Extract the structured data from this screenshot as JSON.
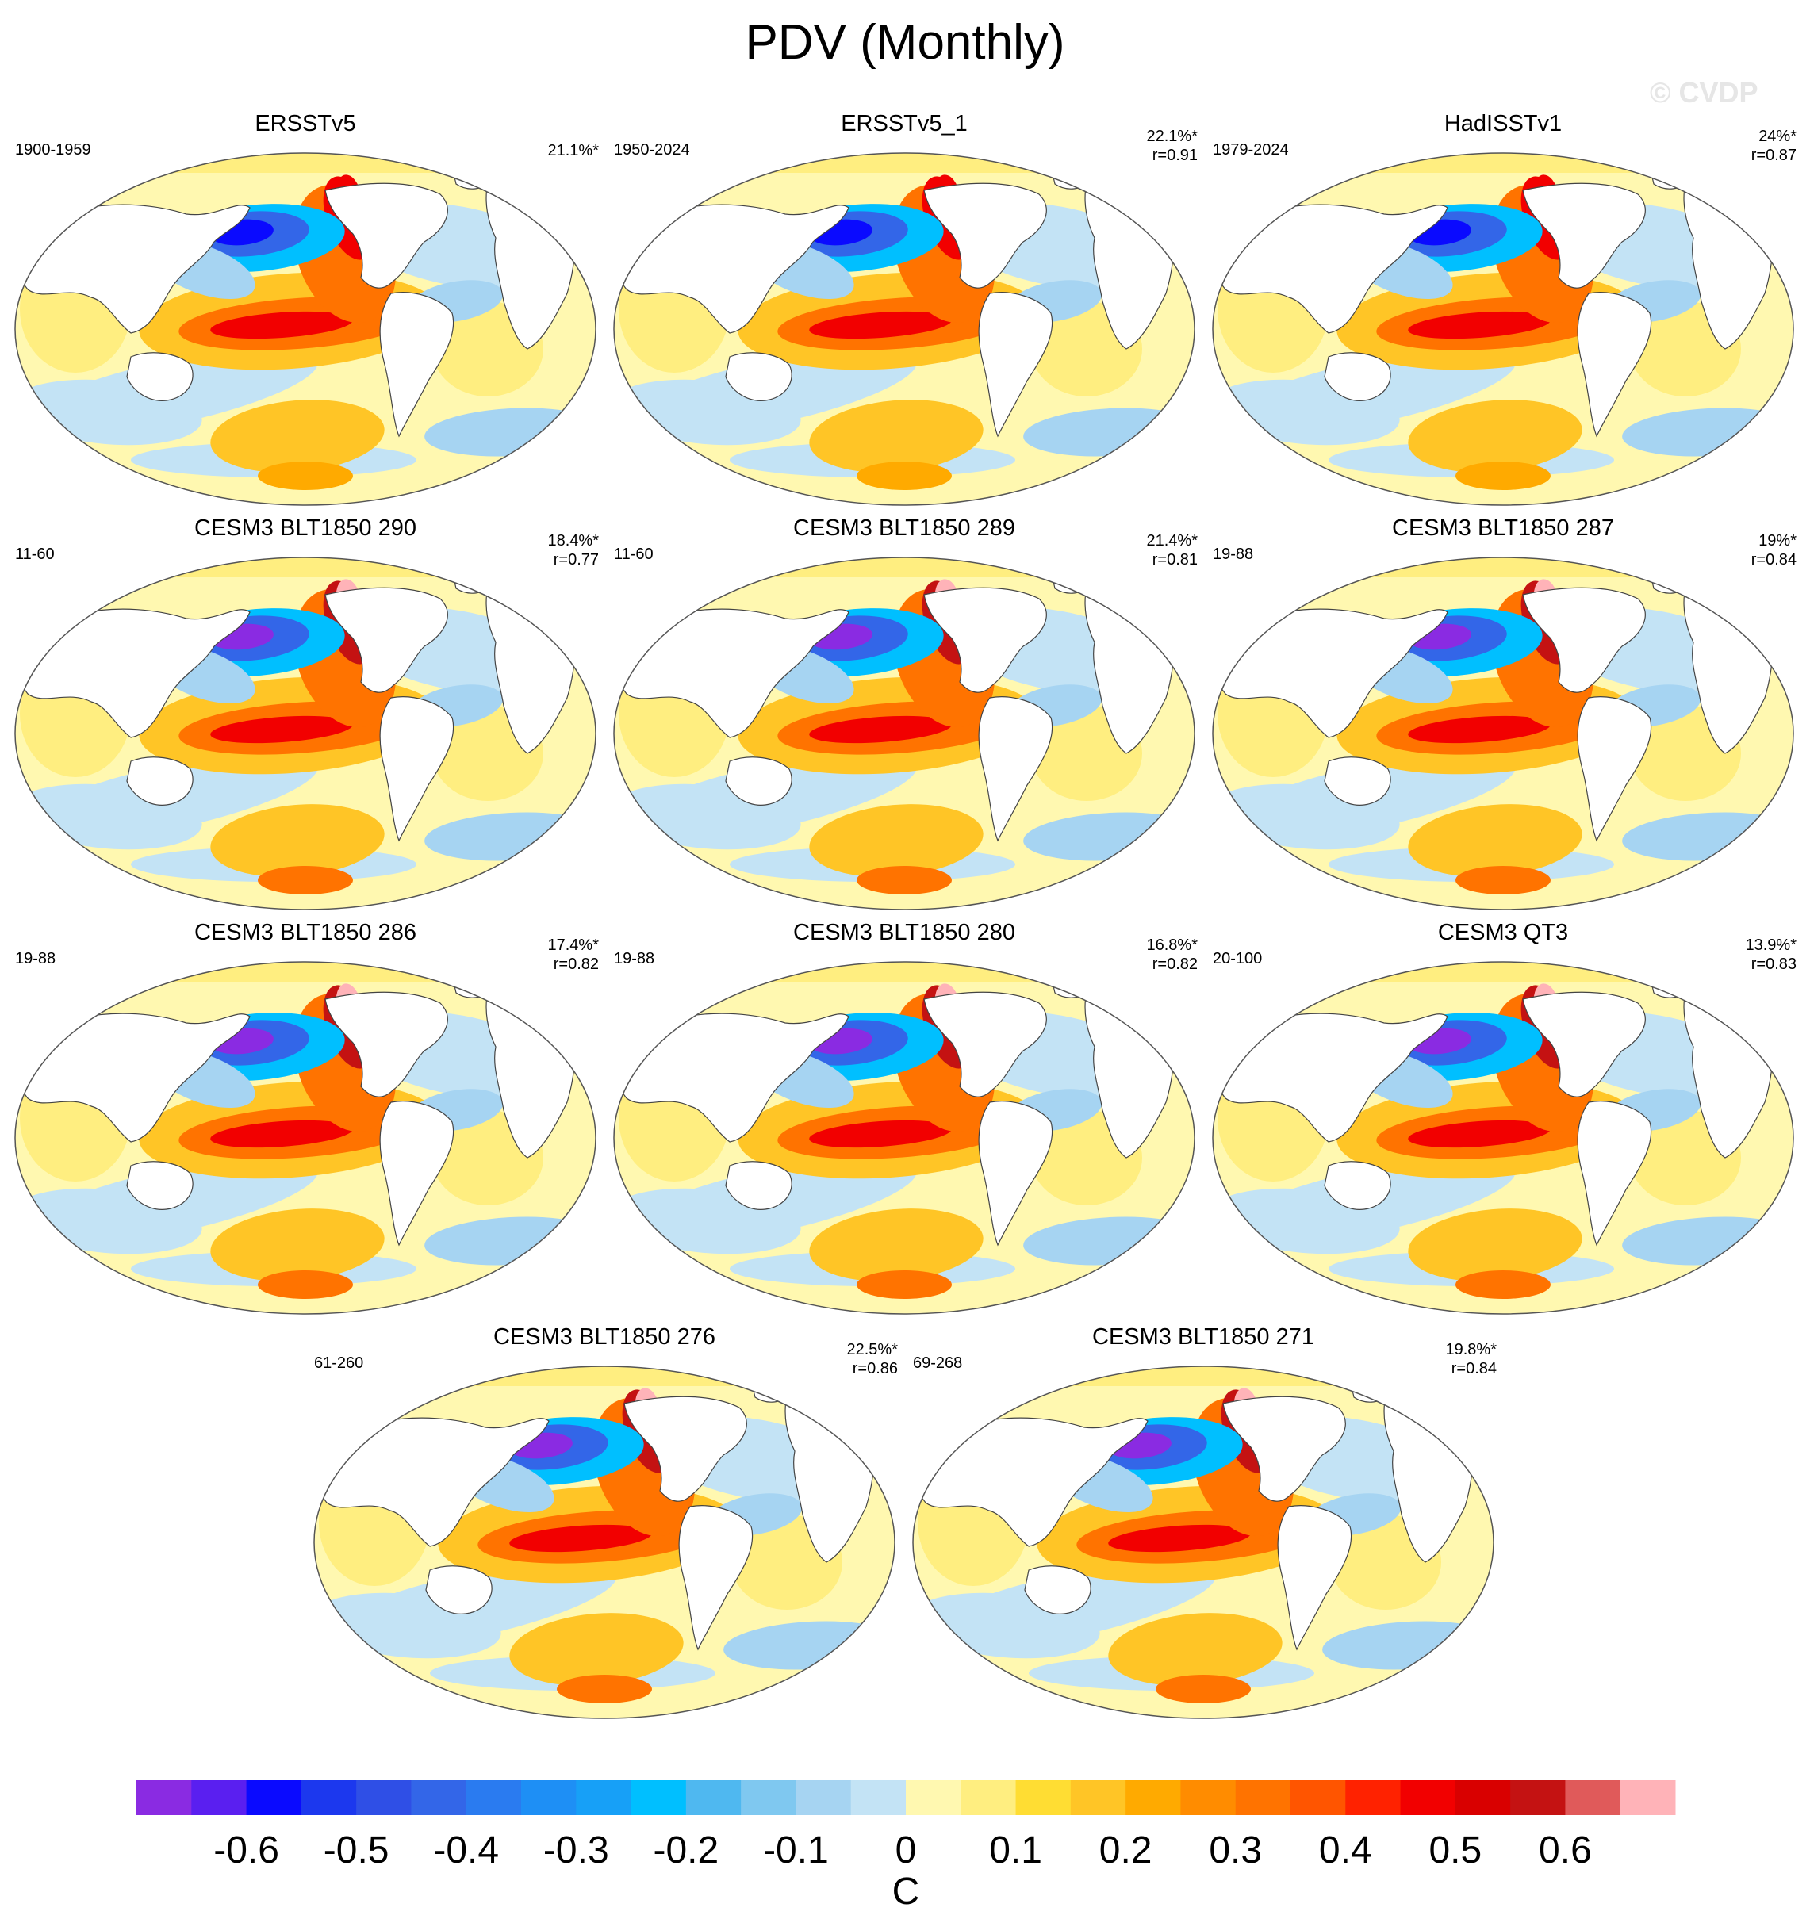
{
  "title": "PDV (Monthly)",
  "watermark": "© CVDP",
  "chart_data": {
    "type": "heatmap",
    "description_units": "C",
    "colorbar": {
      "label": "C",
      "tick_labels": [
        "-0.6",
        "-0.5",
        "-0.4",
        "-0.3",
        "-0.2",
        "-0.1",
        "0",
        "0.1",
        "0.2",
        "0.3",
        "0.4",
        "0.5",
        "0.6"
      ],
      "levels": [
        -0.65,
        -0.6,
        -0.55,
        -0.5,
        -0.45,
        -0.4,
        -0.35,
        -0.3,
        -0.25,
        -0.2,
        -0.15,
        -0.1,
        -0.05,
        0,
        0.05,
        0.1,
        0.15,
        0.2,
        0.25,
        0.3,
        0.35,
        0.4,
        0.45,
        0.5,
        0.55,
        0.6,
        0.65
      ],
      "colors": [
        "#8a2be2",
        "#5a1ff0",
        "#0a0aff",
        "#1c38ee",
        "#2f4fe6",
        "#3366e8",
        "#2a7bf0",
        "#1e8ff5",
        "#17a0f7",
        "#00bfff",
        "#4fb8f0",
        "#7fc8f0",
        "#a6d4f2",
        "#c3e3f5",
        "#fff8b0",
        "#ffee80",
        "#ffdd33",
        "#ffc526",
        "#ffaa00",
        "#ff8c00",
        "#ff7300",
        "#ff5500",
        "#ff2200",
        "#f20000",
        "#d90000",
        "#c41212",
        "#e05a5a",
        "#ffb3b8"
      ]
    },
    "panels": [
      {
        "title": "ERSSTv5",
        "period": "1900-1959",
        "variance": "21.1%*",
        "r": ""
      },
      {
        "title": "ERSSTv5_1",
        "period": "1950-2024",
        "variance": "22.1%*",
        "r": "r=0.91"
      },
      {
        "title": "HadISSTv1",
        "period": "1979-2024",
        "variance": "24%*",
        "r": "r=0.87"
      },
      {
        "title": "CESM3 BLT1850 290",
        "period": "11-60",
        "variance": "18.4%*",
        "r": "r=0.77"
      },
      {
        "title": "CESM3 BLT1850 289",
        "period": "11-60",
        "variance": "21.4%*",
        "r": "r=0.81"
      },
      {
        "title": "CESM3 BLT1850 287",
        "period": "19-88",
        "variance": "19%*",
        "r": "r=0.84"
      },
      {
        "title": "CESM3 BLT1850 286",
        "period": "19-88",
        "variance": "17.4%*",
        "r": "r=0.82"
      },
      {
        "title": "CESM3 BLT1850 280",
        "period": "19-88",
        "variance": "16.8%*",
        "r": "r=0.82"
      },
      {
        "title": "CESM3 QT3",
        "period": "20-100",
        "variance": "13.9%*",
        "r": "r=0.83"
      },
      {
        "title": "CESM3 BLT1850 276",
        "period": "61-260",
        "variance": "22.5%*",
        "r": "r=0.86"
      },
      {
        "title": "CESM3 BLT1850 271",
        "period": "69-268",
        "variance": "19.8%*",
        "r": "r=0.84"
      }
    ]
  }
}
